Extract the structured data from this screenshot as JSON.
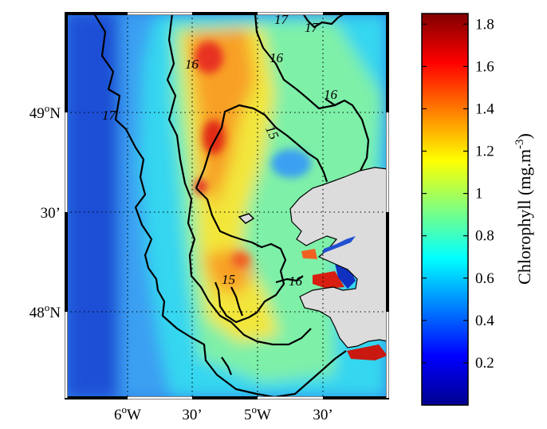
{
  "map": {
    "latitude_labels": [
      {
        "deg": "49",
        "sup": "o",
        "hem": "N"
      },
      {
        "deg": "30’",
        "sup": "",
        "hem": ""
      },
      {
        "deg": "48",
        "sup": "o",
        "hem": "N"
      }
    ],
    "longitude_labels": [
      {
        "deg": "6",
        "sup": "o",
        "hem": "W"
      },
      {
        "deg": "30’",
        "sup": "",
        "hem": ""
      },
      {
        "deg": "5",
        "sup": "o",
        "hem": "W"
      },
      {
        "deg": "30’",
        "sup": "",
        "hem": ""
      }
    ],
    "contour_labels": [
      "17",
      "17",
      "16",
      "16",
      "16",
      "17",
      "15",
      "15",
      "16"
    ],
    "land_color": "#dcdcdc",
    "contour_color": "#000000",
    "grid_style": "dotted"
  },
  "colorbar": {
    "title": "Chlorophyll (mg.m",
    "title_sup": "-3",
    "title_close": ")",
    "tick_labels": [
      "1.8",
      "1.6",
      "1.4",
      "1.2",
      "1",
      "0.8",
      "0.6",
      "0.4",
      "0.2"
    ],
    "colormap": "jet",
    "min": 0,
    "max": 1.85
  }
}
